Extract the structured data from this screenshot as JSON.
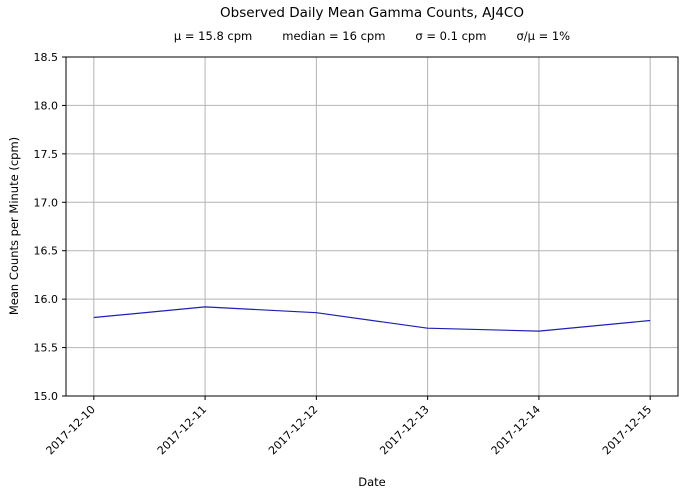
{
  "chart_data": {
    "type": "line",
    "title": "Observed Daily Mean Gamma Counts, AJ4CO",
    "stats": {
      "mu": "μ = 15.8 cpm",
      "median": "median = 16 cpm",
      "sigma": "σ = 0.1 cpm",
      "ratio": "σ/μ = 1%"
    },
    "xlabel": "Date",
    "ylabel": "Mean Counts per Minute (cpm)",
    "x": [
      "2017-12-10",
      "2017-12-11",
      "2017-12-12",
      "2017-12-13",
      "2017-12-14",
      "2017-12-15"
    ],
    "values": [
      15.81,
      15.92,
      15.86,
      15.7,
      15.67,
      15.78
    ],
    "ylim": [
      15.0,
      18.5
    ],
    "yticks": [
      15.0,
      15.5,
      16.0,
      16.5,
      17.0,
      17.5,
      18.0,
      18.5
    ],
    "ytick_labels": [
      "15.0",
      "15.5",
      "16.0",
      "16.5",
      "17.0",
      "17.5",
      "18.0",
      "18.5"
    ],
    "grid": true,
    "legend": "none",
    "line_color": "#1f1fb4",
    "grid_color": "#b4b4b4",
    "axis_color": "#000000"
  }
}
